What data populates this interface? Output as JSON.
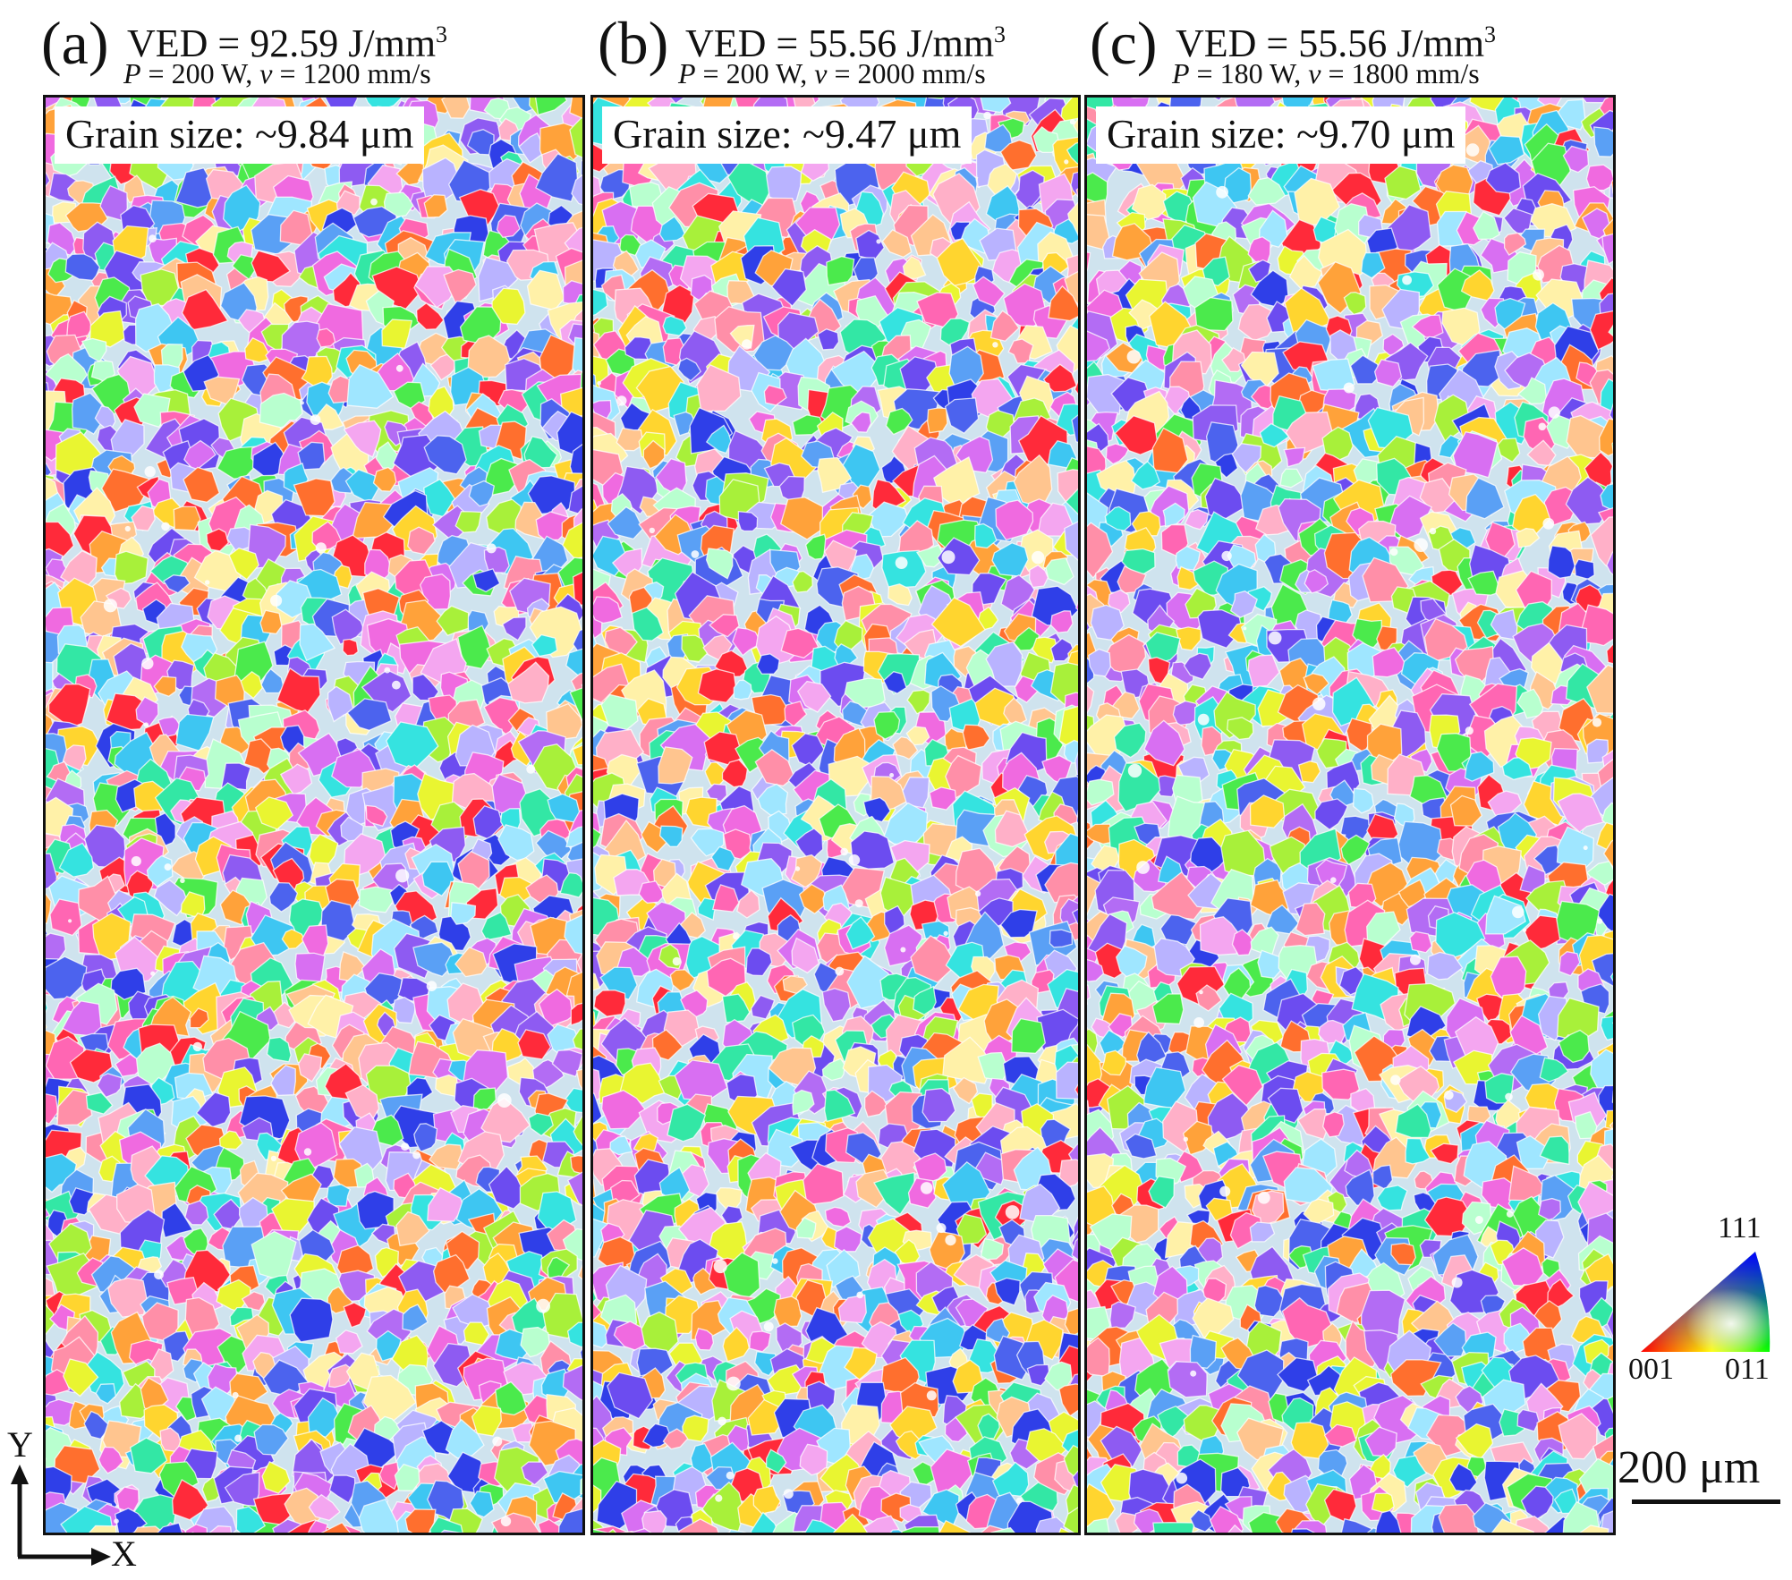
{
  "panels": [
    {
      "letter": "(a)",
      "ved": "VED = 92.59 J/mm",
      "ved_exp": "3",
      "p_sym": "P",
      "p_val": " = 200 W, ",
      "v_sym": "v",
      "v_val": " = 1200 mm/s",
      "grain_size": "Grain size: ~9.84 μm",
      "grain_map_icon": "ebsd-ipf-orientation-map"
    },
    {
      "letter": "(b)",
      "ved": "VED = 55.56 J/mm",
      "ved_exp": "3",
      "p_sym": "P",
      "p_val": " = 200 W, ",
      "v_sym": "v",
      "v_val": " = 2000 mm/s",
      "grain_size": "Grain size: ~9.47 μm",
      "grain_map_icon": "ebsd-ipf-orientation-map"
    },
    {
      "letter": "(c)",
      "ved": "VED = 55.56 J/mm",
      "ved_exp": "3",
      "p_sym": "P",
      "p_val": " = 180 W, ",
      "v_sym": "v",
      "v_val": " = 1800 mm/s",
      "grain_size": "Grain size: ~9.70 μm",
      "grain_map_icon": "ebsd-ipf-orientation-map"
    }
  ],
  "axes": {
    "y": "Y",
    "x": "X"
  },
  "ipf_key": {
    "top": "111",
    "left": "001",
    "right": "011",
    "colors": [
      "#ff0000",
      "#00ff00",
      "#0000ff"
    ]
  },
  "scale_bar": {
    "label": "200 μm"
  },
  "grain_palette": [
    "#ff2a3a",
    "#ff6f2e",
    "#ffa23a",
    "#ffd52f",
    "#e9f531",
    "#a8f03a",
    "#4bea4c",
    "#33e7a5",
    "#35e3e0",
    "#3ec6f2",
    "#5aa0f5",
    "#4c63ee",
    "#6c4cf0",
    "#8e5bf2",
    "#b36cf4",
    "#d86ff2",
    "#f06ae0",
    "#ff66b3",
    "#ff8fa8",
    "#ffb0c8",
    "#f4a6f0",
    "#b9b3ff",
    "#9fe6ff",
    "#b8ffcf",
    "#fff1a8",
    "#ffc58f",
    "#2f3fe8"
  ]
}
